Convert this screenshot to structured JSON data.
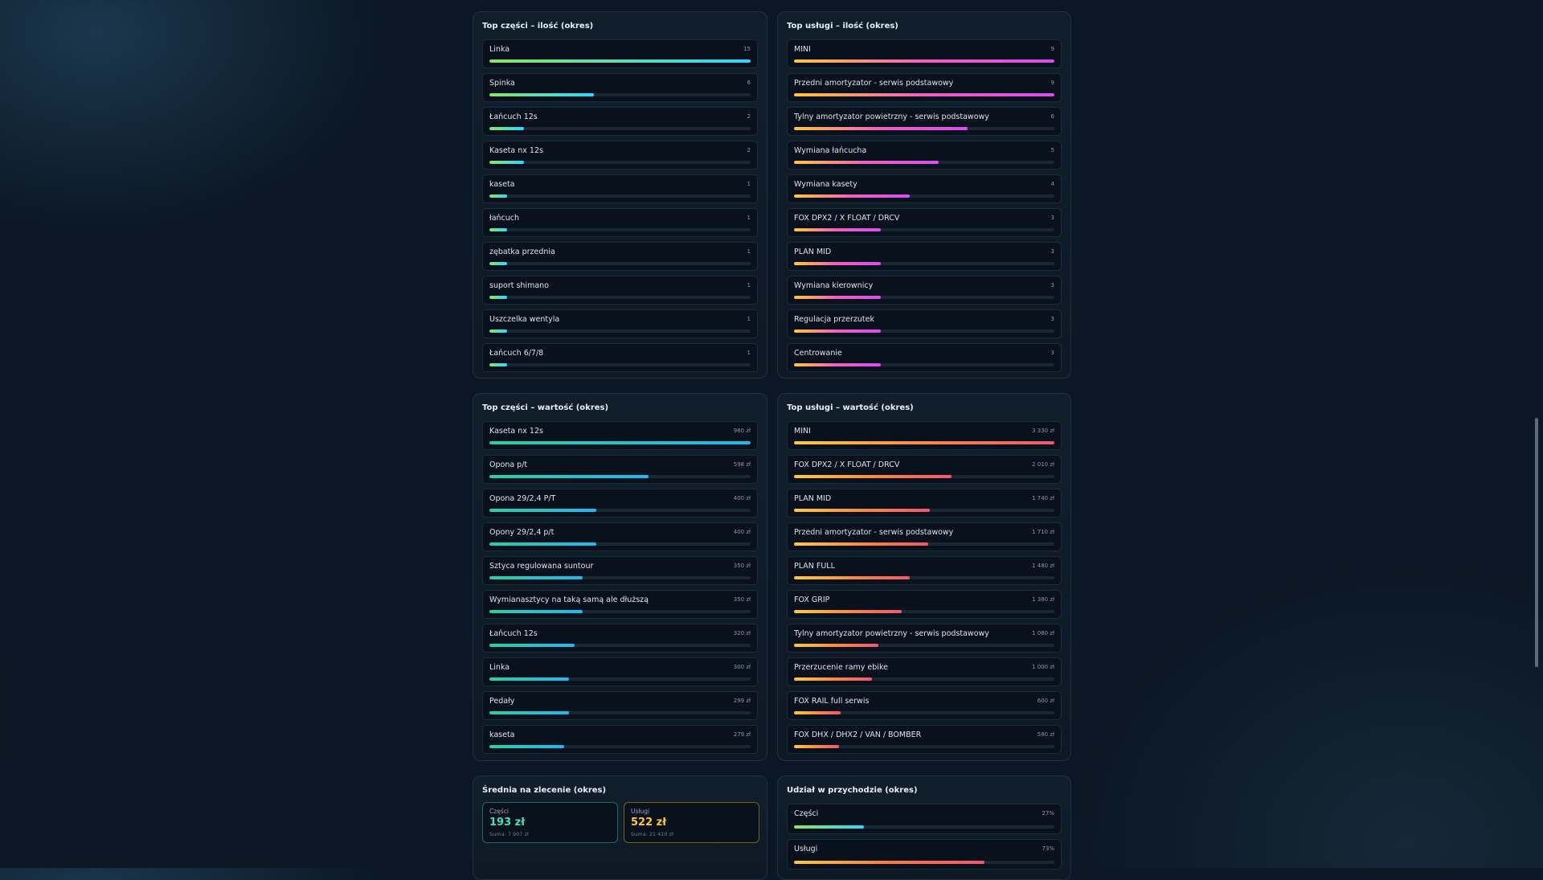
{
  "top_parts_qty": {
    "title": "Top części – ilość (okres)",
    "items": [
      {
        "label": "Linka",
        "value": "15",
        "fraction": 1.0
      },
      {
        "label": "Spinka",
        "value": "6",
        "fraction": 0.4
      },
      {
        "label": "Łańcuch 12s",
        "value": "2",
        "fraction": 0.133
      },
      {
        "label": "Kaseta nx 12s",
        "value": "2",
        "fraction": 0.133
      },
      {
        "label": "kaseta",
        "value": "1",
        "fraction": 0.067
      },
      {
        "label": "łańcuch",
        "value": "1",
        "fraction": 0.067
      },
      {
        "label": "zębatka przednia",
        "value": "1",
        "fraction": 0.067
      },
      {
        "label": "suport shimano",
        "value": "1",
        "fraction": 0.067
      },
      {
        "label": "Uszczelka wentyla",
        "value": "1",
        "fraction": 0.067
      },
      {
        "label": "Łańcuch 6/7/8",
        "value": "1",
        "fraction": 0.067
      }
    ]
  },
  "top_services_qty": {
    "title": "Top usługi – ilość (okres)",
    "items": [
      {
        "label": "MINI",
        "value": "9",
        "fraction": 1.0
      },
      {
        "label": "Przedni amortyzator - serwis podstawowy",
        "value": "9",
        "fraction": 1.0
      },
      {
        "label": "Tylny amortyzator powietrzny - serwis podstawowy",
        "value": "6",
        "fraction": 0.667
      },
      {
        "label": "Wymiana łańcucha",
        "value": "5",
        "fraction": 0.556
      },
      {
        "label": "Wymiana kasety",
        "value": "4",
        "fraction": 0.444
      },
      {
        "label": "FOX DPX2 / X FLOAT / DRCV",
        "value": "3",
        "fraction": 0.333
      },
      {
        "label": "PLAN MID",
        "value": "3",
        "fraction": 0.333
      },
      {
        "label": "Wymiana kierownicy",
        "value": "3",
        "fraction": 0.333
      },
      {
        "label": "Regulacja przerzutek",
        "value": "3",
        "fraction": 0.333
      },
      {
        "label": "Centrowanie",
        "value": "3",
        "fraction": 0.333
      }
    ]
  },
  "top_parts_value": {
    "title": "Top części – wartość (okres)",
    "items": [
      {
        "label": "Kaseta nx 12s",
        "value": "980 zł",
        "fraction": 1.0
      },
      {
        "label": "Opona p/t",
        "value": "598 zł",
        "fraction": 0.61
      },
      {
        "label": "Opona 29/2,4 P/T",
        "value": "400 zł",
        "fraction": 0.408
      },
      {
        "label": "Opony 29/2,4 p/t",
        "value": "400 zł",
        "fraction": 0.408
      },
      {
        "label": "Sztyca regulowana suntour",
        "value": "350 zł",
        "fraction": 0.357
      },
      {
        "label": "Wymianasztycy na taką samą ale dłuższą",
        "value": "350 zł",
        "fraction": 0.357
      },
      {
        "label": "Łańcuch 12s",
        "value": "320 zł",
        "fraction": 0.327
      },
      {
        "label": "Linka",
        "value": "300 zł",
        "fraction": 0.306
      },
      {
        "label": "Pedały",
        "value": "299 zł",
        "fraction": 0.305
      },
      {
        "label": "kaseta",
        "value": "279 zł",
        "fraction": 0.285
      }
    ]
  },
  "top_services_value": {
    "title": "Top usługi – wartość (okres)",
    "items": [
      {
        "label": "MINI",
        "value": "3 330 zł",
        "fraction": 1.0
      },
      {
        "label": "FOX DPX2 / X FLOAT / DRCV",
        "value": "2 010 zł",
        "fraction": 0.604
      },
      {
        "label": "PLAN MID",
        "value": "1 740 zł",
        "fraction": 0.523
      },
      {
        "label": "Przedni amortyzator - serwis podstawowy",
        "value": "1 710 zł",
        "fraction": 0.514
      },
      {
        "label": "PLAN FULL",
        "value": "1 480 zł",
        "fraction": 0.444
      },
      {
        "label": "FOX GRIP",
        "value": "1 380 zł",
        "fraction": 0.414
      },
      {
        "label": "Tylny amortyzator powietrzny - serwis podstawowy",
        "value": "1 080 zł",
        "fraction": 0.324
      },
      {
        "label": "Przerzucenie ramy ebike",
        "value": "1 000 zł",
        "fraction": 0.3
      },
      {
        "label": "FOX RAIL full serwis",
        "value": "600 zł",
        "fraction": 0.18
      },
      {
        "label": "FOX DHX / DHX2 / VAN / BOMBER",
        "value": "580 zł",
        "fraction": 0.174
      }
    ]
  },
  "average": {
    "title": "Średnia na zlecenie (okres)",
    "parts": {
      "label": "Części",
      "value": "193 zł",
      "sum": "Suma: 7 907 zł"
    },
    "services": {
      "label": "Usługi",
      "value": "522 zł",
      "sum": "Suma: 21 410 zł"
    }
  },
  "share": {
    "title": "Udział w przychodzie (okres)",
    "items": [
      {
        "label": "Części",
        "value": "27%",
        "fraction": 0.27
      },
      {
        "label": "Usługi",
        "value": "73%",
        "fraction": 0.73
      }
    ]
  }
}
